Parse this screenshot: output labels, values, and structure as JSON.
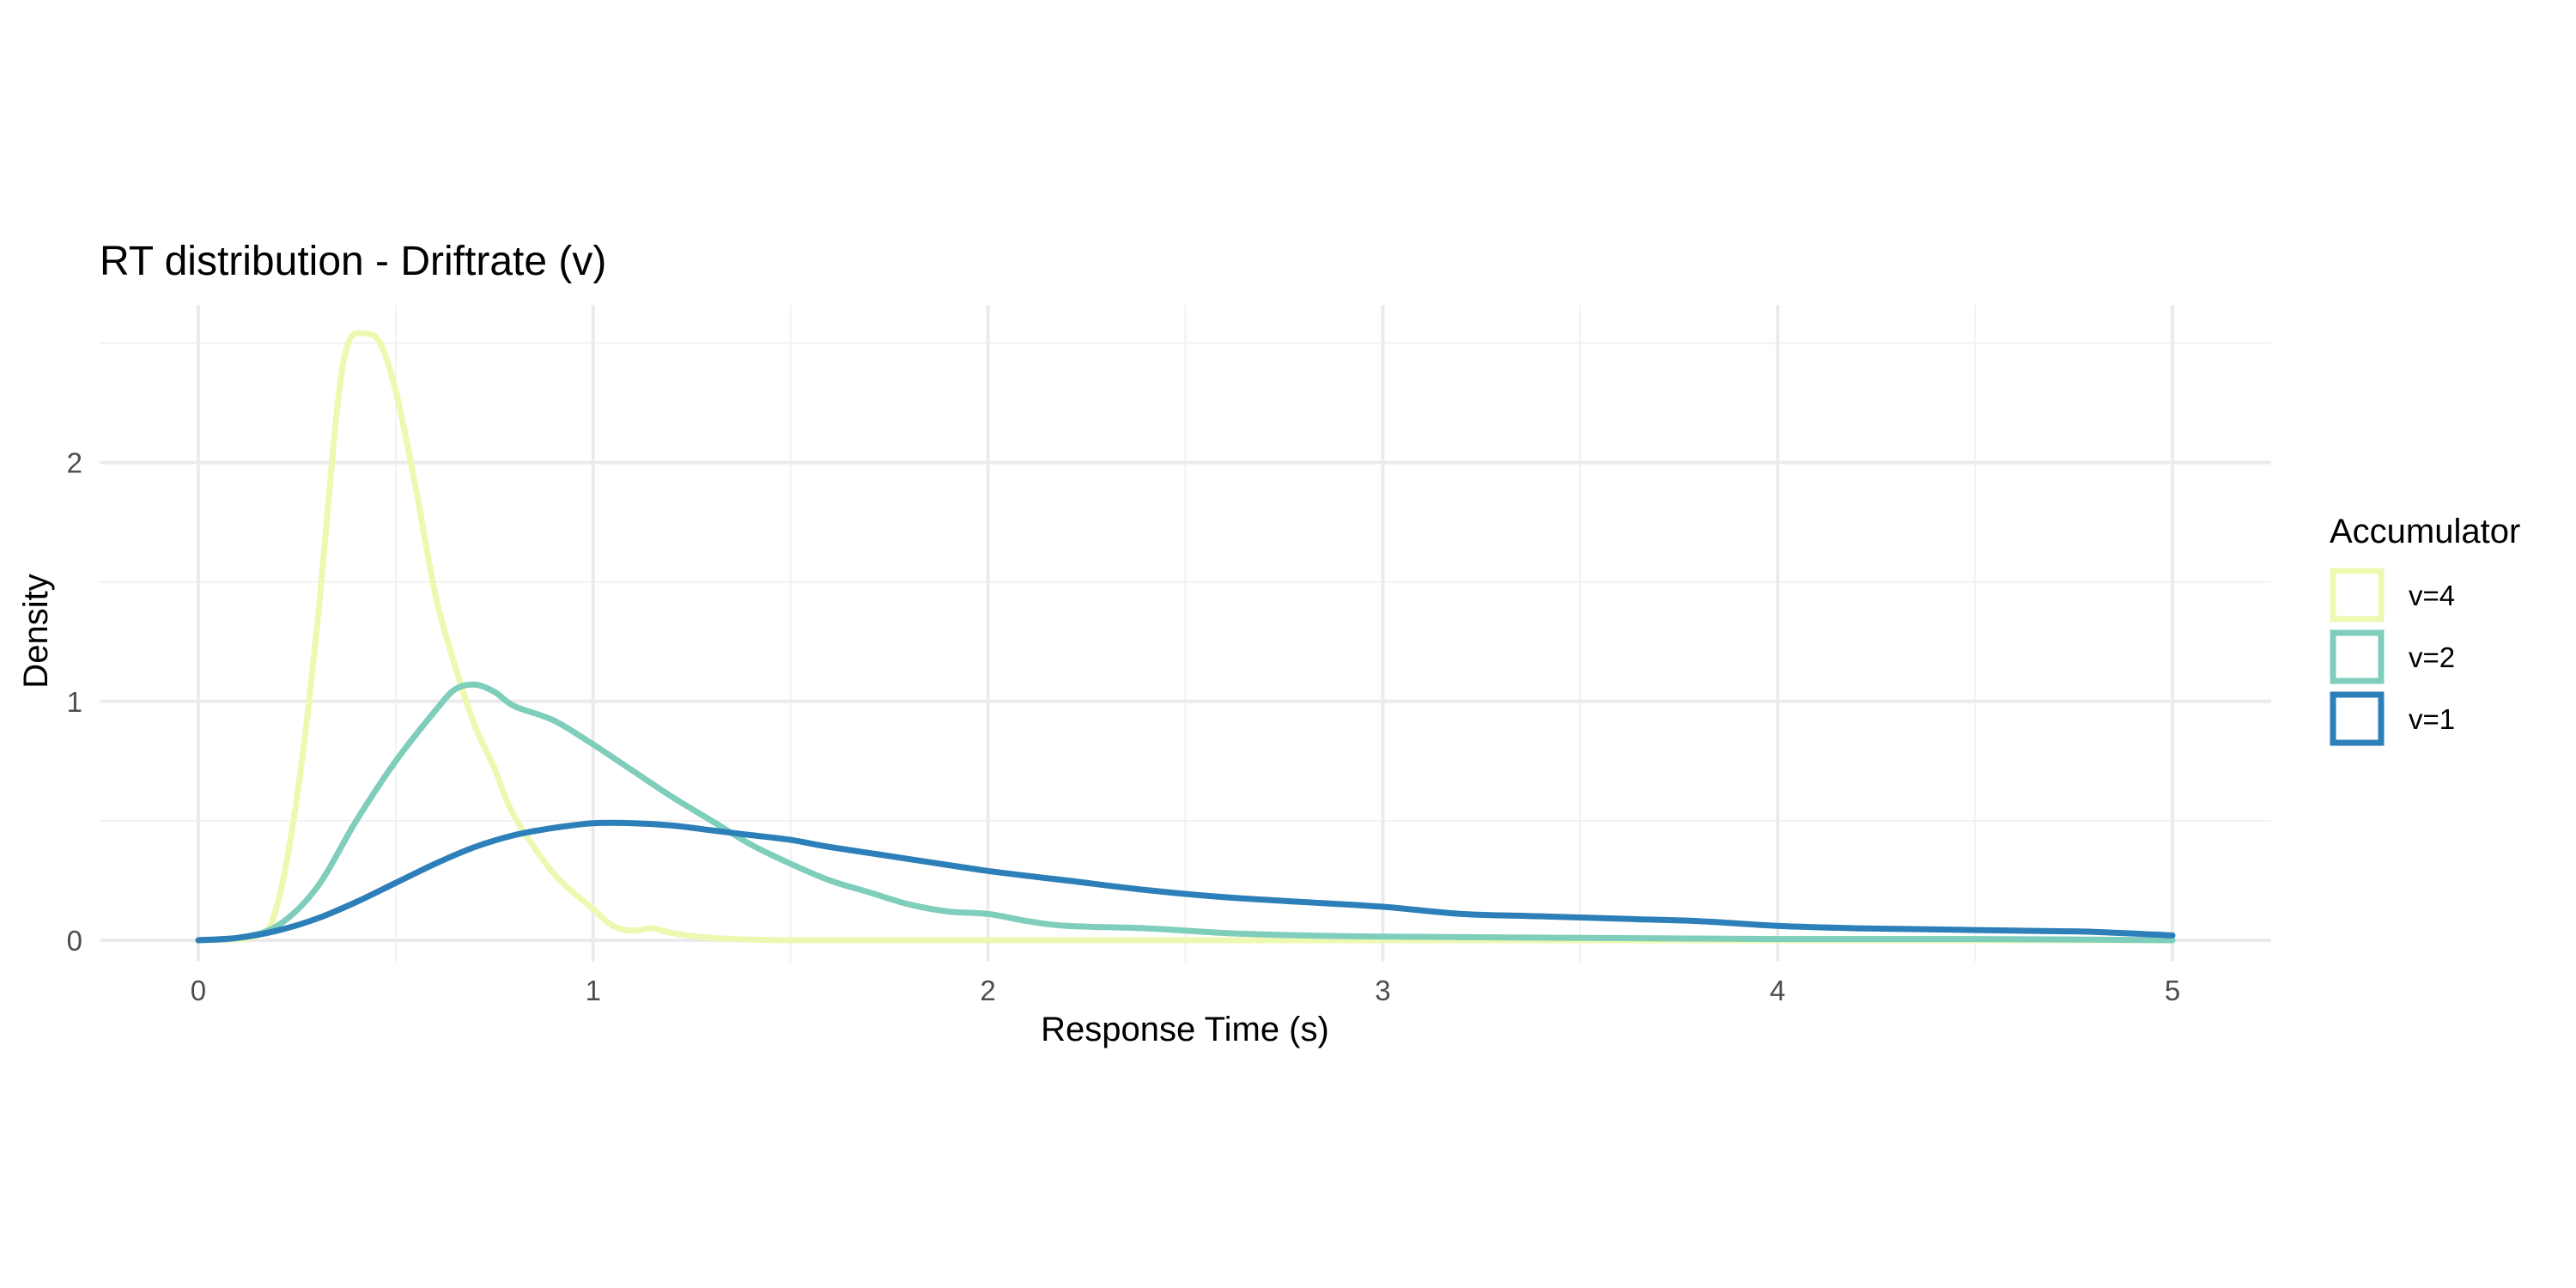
{
  "chart_data": {
    "type": "line",
    "title": "RT distribution - Driftrate (v)",
    "xlabel": "Response Time (s)",
    "ylabel": "Density",
    "xlim": [
      -0.25,
      5.25
    ],
    "ylim": [
      -0.09,
      2.66
    ],
    "x_ticks": [
      0,
      1,
      2,
      3,
      4,
      5
    ],
    "y_ticks": [
      0,
      1,
      2
    ],
    "grid": true,
    "legend": {
      "title": "Accumulator",
      "placement": "right"
    },
    "series": [
      {
        "name": "v=4",
        "color": "#edf8b1",
        "points": [
          [
            0,
            0
          ],
          [
            0.15,
            0.02
          ],
          [
            0.2,
            0.15
          ],
          [
            0.25,
            0.6
          ],
          [
            0.3,
            1.3
          ],
          [
            0.35,
            2.2
          ],
          [
            0.38,
            2.5
          ],
          [
            0.42,
            2.54
          ],
          [
            0.46,
            2.5
          ],
          [
            0.5,
            2.3
          ],
          [
            0.55,
            1.9
          ],
          [
            0.6,
            1.45
          ],
          [
            0.65,
            1.15
          ],
          [
            0.7,
            0.9
          ],
          [
            0.75,
            0.72
          ],
          [
            0.8,
            0.52
          ],
          [
            0.9,
            0.28
          ],
          [
            1.0,
            0.13
          ],
          [
            1.05,
            0.06
          ],
          [
            1.1,
            0.04
          ],
          [
            1.15,
            0.05
          ],
          [
            1.2,
            0.03
          ],
          [
            1.3,
            0.01
          ],
          [
            1.5,
            0.0
          ],
          [
            2.0,
            0.0
          ],
          [
            3.0,
            0.0
          ],
          [
            4.0,
            0.0
          ],
          [
            5.0,
            0.0
          ]
        ]
      },
      {
        "name": "v=2",
        "color": "#7fcdbb",
        "points": [
          [
            0,
            0
          ],
          [
            0.1,
            0.01
          ],
          [
            0.2,
            0.06
          ],
          [
            0.3,
            0.22
          ],
          [
            0.4,
            0.5
          ],
          [
            0.5,
            0.75
          ],
          [
            0.6,
            0.96
          ],
          [
            0.65,
            1.05
          ],
          [
            0.7,
            1.07
          ],
          [
            0.75,
            1.04
          ],
          [
            0.8,
            0.98
          ],
          [
            0.9,
            0.92
          ],
          [
            1.0,
            0.82
          ],
          [
            1.1,
            0.71
          ],
          [
            1.2,
            0.6
          ],
          [
            1.3,
            0.5
          ],
          [
            1.4,
            0.4
          ],
          [
            1.5,
            0.32
          ],
          [
            1.6,
            0.25
          ],
          [
            1.7,
            0.2
          ],
          [
            1.8,
            0.15
          ],
          [
            1.9,
            0.12
          ],
          [
            2.0,
            0.11
          ],
          [
            2.1,
            0.08
          ],
          [
            2.2,
            0.06
          ],
          [
            2.4,
            0.05
          ],
          [
            2.6,
            0.03
          ],
          [
            2.8,
            0.02
          ],
          [
            3.0,
            0.015
          ],
          [
            3.5,
            0.01
          ],
          [
            4.0,
            0.005
          ],
          [
            4.5,
            0.005
          ],
          [
            5.0,
            0.0
          ]
        ]
      },
      {
        "name": "v=1",
        "color": "#2c7fb8",
        "points": [
          [
            0,
            0
          ],
          [
            0.1,
            0.01
          ],
          [
            0.2,
            0.04
          ],
          [
            0.3,
            0.09
          ],
          [
            0.4,
            0.16
          ],
          [
            0.5,
            0.24
          ],
          [
            0.6,
            0.32
          ],
          [
            0.7,
            0.39
          ],
          [
            0.8,
            0.44
          ],
          [
            0.9,
            0.47
          ],
          [
            1.0,
            0.49
          ],
          [
            1.1,
            0.49
          ],
          [
            1.2,
            0.48
          ],
          [
            1.3,
            0.46
          ],
          [
            1.4,
            0.44
          ],
          [
            1.5,
            0.42
          ],
          [
            1.6,
            0.39
          ],
          [
            1.8,
            0.34
          ],
          [
            2.0,
            0.29
          ],
          [
            2.2,
            0.25
          ],
          [
            2.4,
            0.21
          ],
          [
            2.6,
            0.18
          ],
          [
            2.8,
            0.16
          ],
          [
            3.0,
            0.14
          ],
          [
            3.2,
            0.11
          ],
          [
            3.4,
            0.1
          ],
          [
            3.6,
            0.09
          ],
          [
            3.8,
            0.08
          ],
          [
            4.0,
            0.06
          ],
          [
            4.2,
            0.05
          ],
          [
            4.4,
            0.045
          ],
          [
            4.6,
            0.04
          ],
          [
            4.8,
            0.035
          ],
          [
            5.0,
            0.02
          ]
        ]
      }
    ]
  }
}
